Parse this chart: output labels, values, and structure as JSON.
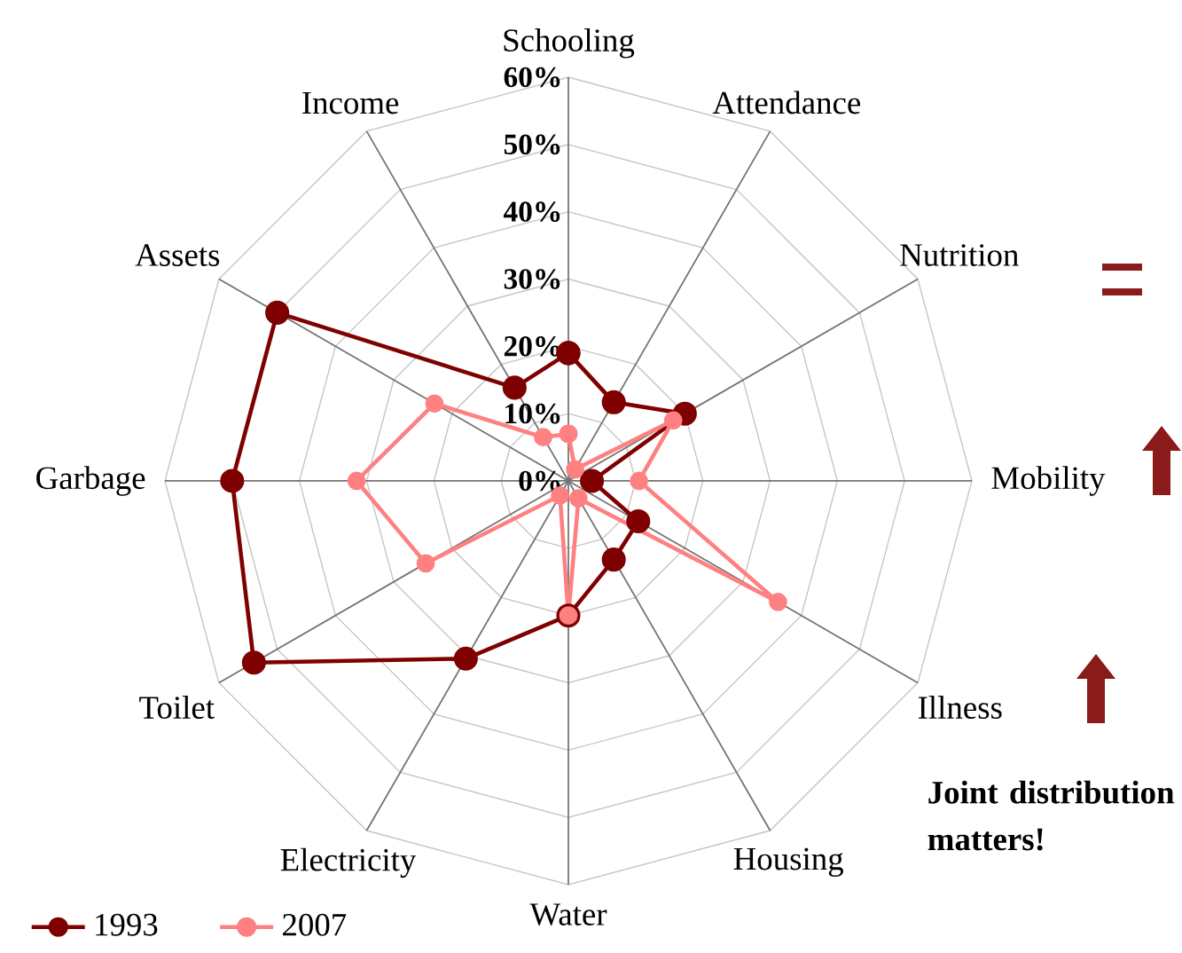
{
  "chart_data": {
    "type": "radar",
    "categories": [
      "Schooling",
      "Attendance",
      "Nutrition",
      "Mobility",
      "Illness",
      "Housing",
      "Water",
      "Electricity",
      "Toilet",
      "Garbage",
      "Assets",
      "Income"
    ],
    "series": [
      {
        "name": "1993",
        "color": "#7f0000",
        "values": [
          19,
          13.5,
          20,
          3.5,
          12,
          13.5,
          20,
          30.5,
          54,
          50,
          50,
          16
        ]
      },
      {
        "name": "2007",
        "color": "#ff8080",
        "values": [
          7,
          2,
          18,
          10.5,
          36,
          3,
          20,
          2.5,
          24.5,
          31.5,
          23,
          7.5
        ]
      }
    ],
    "ylim": [
      0,
      60
    ],
    "yticks": [
      {
        "value": 0,
        "label": "0%"
      },
      {
        "value": 10,
        "label": "10%"
      },
      {
        "value": 20,
        "label": "20%"
      },
      {
        "value": 30,
        "label": "30%"
      },
      {
        "value": 40,
        "label": "40%"
      },
      {
        "value": 50,
        "label": "50%"
      },
      {
        "value": 60,
        "label": "60%"
      }
    ],
    "grid": true,
    "marker": "circle",
    "line_style": "solid",
    "legend": "bottom left",
    "annotations": [
      "Joint distribution matters!"
    ]
  }
}
